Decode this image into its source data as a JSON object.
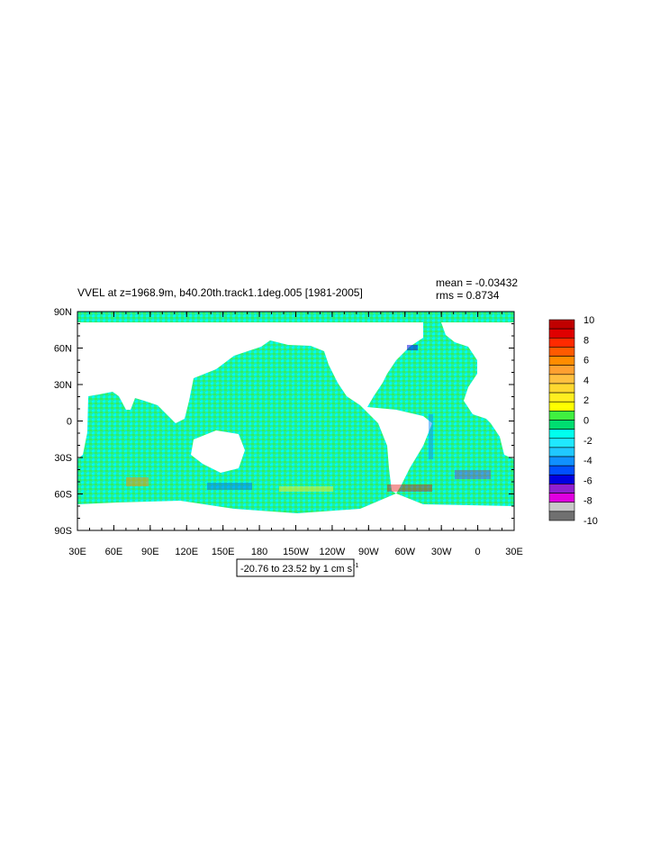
{
  "map": {
    "title": "VVEL at z=1968.9m, b40.20th.track1.1deg.005 [1981-2005]",
    "stats": {
      "mean": "mean = -0.03432",
      "rms": "rms = 0.8734"
    },
    "lat_ticks": [
      "90N",
      "60N",
      "30N",
      "0",
      "30S",
      "60S",
      "90S"
    ],
    "lon_ticks": [
      "30E",
      "60E",
      "90E",
      "120E",
      "150E",
      "180",
      "150W",
      "120W",
      "90W",
      "60W",
      "30W",
      "0",
      "30E"
    ],
    "colorbar": {
      "labels": [
        10,
        8,
        6,
        4,
        2,
        0,
        -2,
        -4,
        -6,
        -8,
        -10
      ],
      "colors": [
        "#c00000",
        "#e00000",
        "#ff2a00",
        "#ff5a00",
        "#ff8c00",
        "#ffa030",
        "#ffc040",
        "#ffd830",
        "#ffee20",
        "#ffff00",
        "#40f040",
        "#00dd70",
        "#00ffee",
        "#20e8ff",
        "#20c8ff",
        "#1090ff",
        "#0050ff",
        "#0000e0",
        "#9020d0",
        "#e000e0",
        "#c8c8c8",
        "#707070"
      ]
    },
    "info": {
      "text": "-20.76 to 23.52 by 1 cm s",
      "superscript": "-1"
    }
  }
}
